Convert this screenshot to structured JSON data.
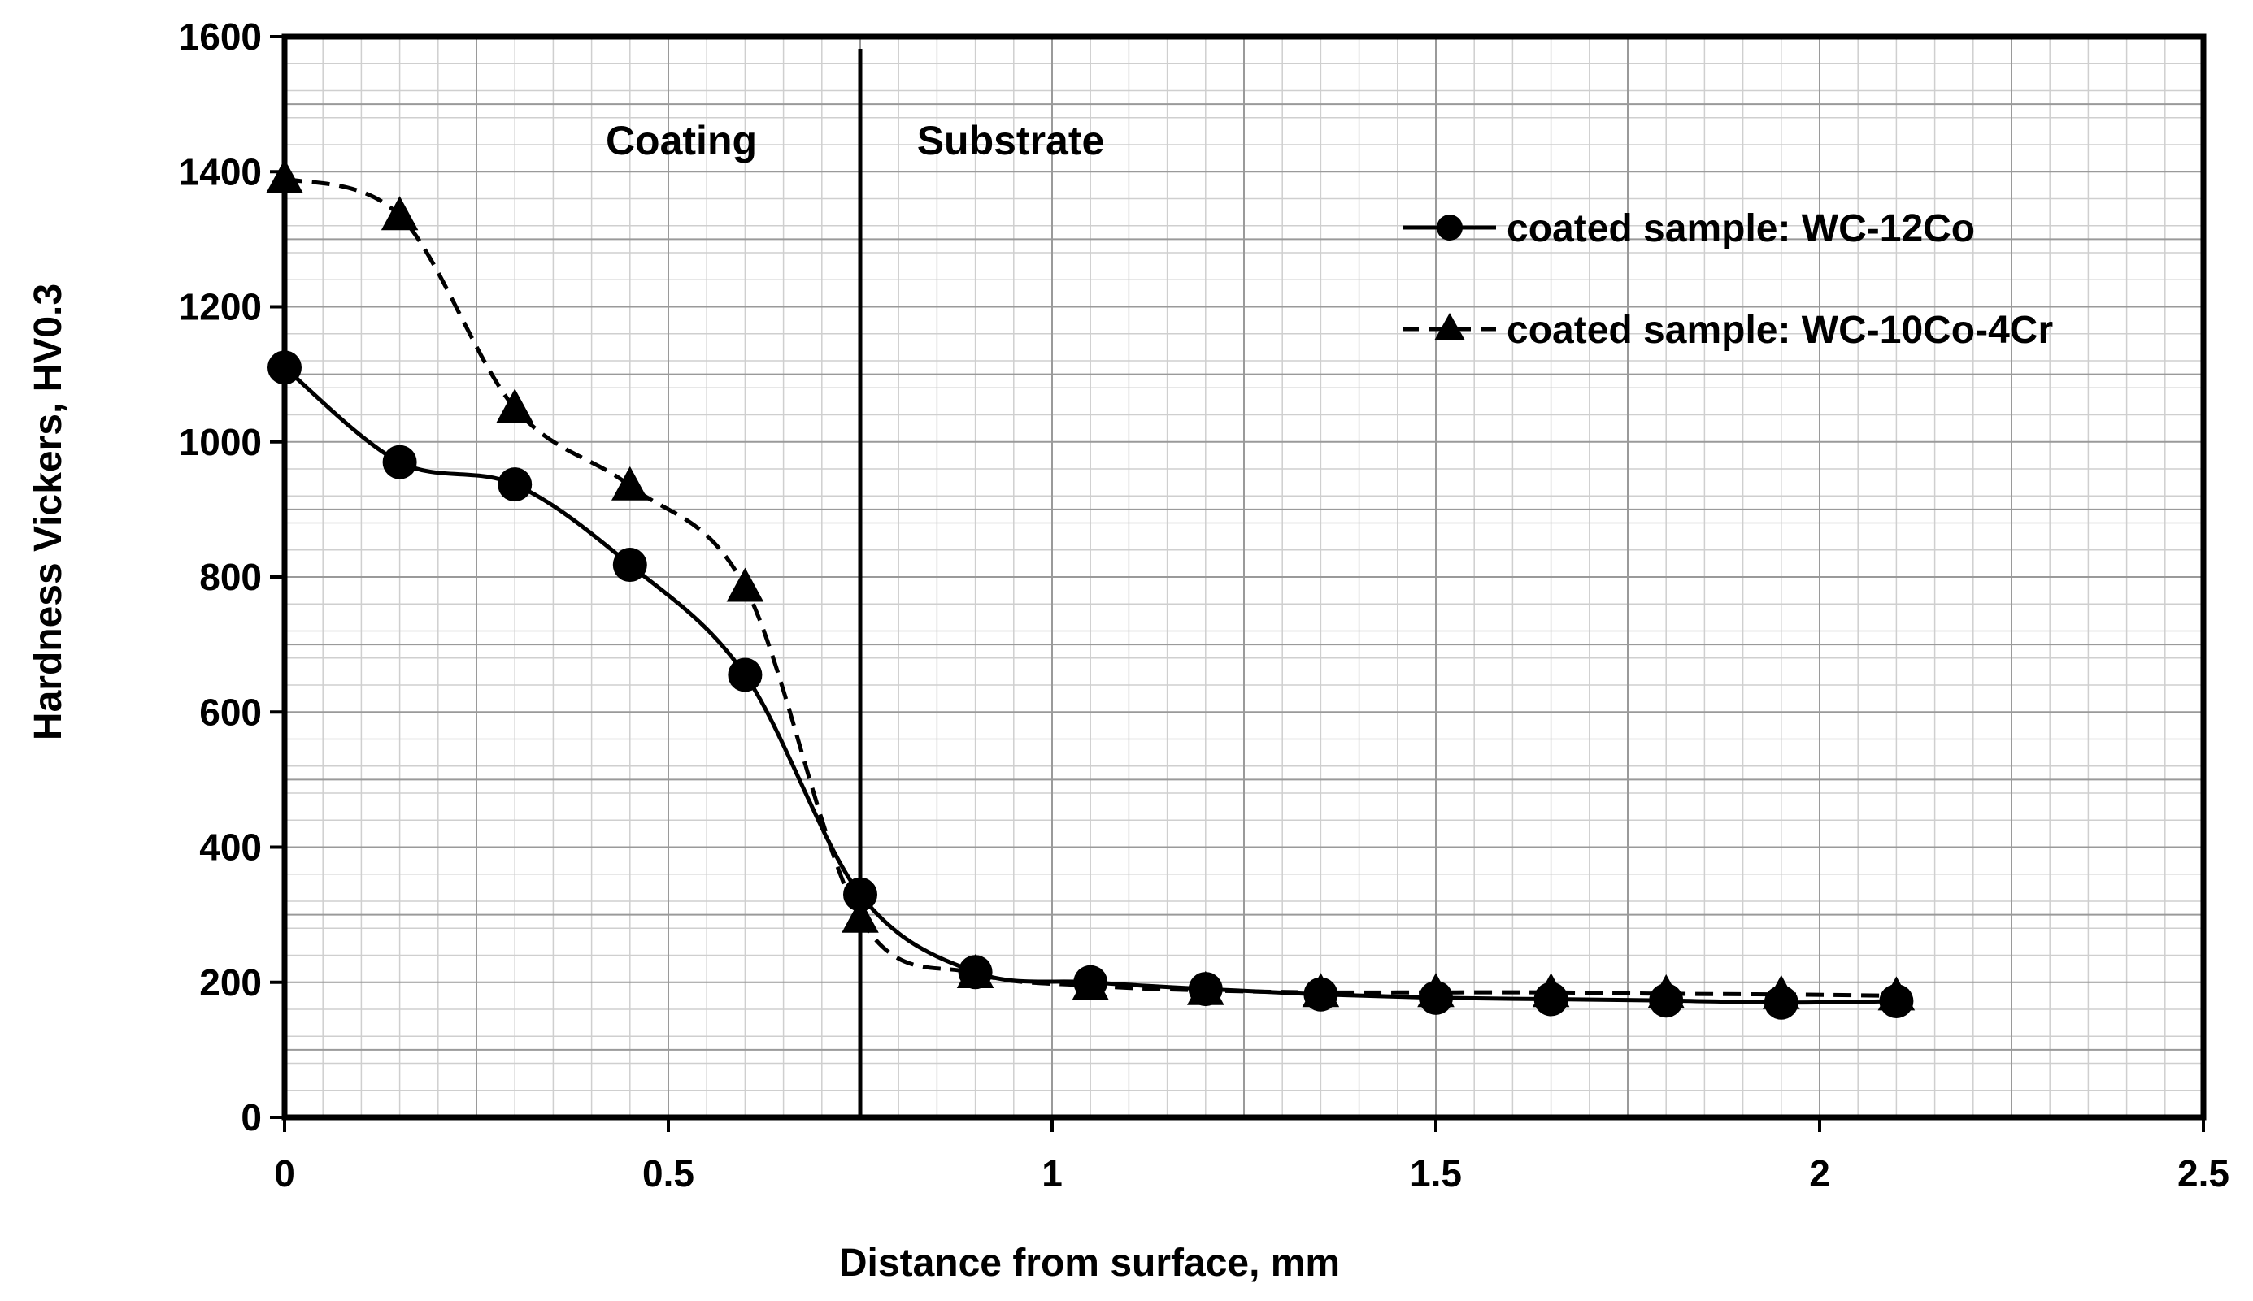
{
  "chart_data": {
    "type": "line",
    "title": "",
    "xlabel": "Distance from surface, mm",
    "ylabel": "Hardness Vickers, HV0.3",
    "xlim": [
      0,
      2.5
    ],
    "ylim": [
      0,
      1600
    ],
    "x_ticks": [
      "0",
      "0.5",
      "1",
      "1.5",
      "2",
      "2.5"
    ],
    "y_ticks": [
      "0",
      "200",
      "400",
      "600",
      "800",
      "1000",
      "1200",
      "1400",
      "1600"
    ],
    "x_tick_values": [
      0,
      0.5,
      1,
      1.5,
      2,
      2.5
    ],
    "y_tick_values": [
      0,
      200,
      400,
      600,
      800,
      1000,
      1200,
      1400,
      1600
    ],
    "grid": true,
    "legend_position": "top-right",
    "regions": {
      "boundary_x": 0.75,
      "left_label": "Coating",
      "right_label": "Substrate"
    },
    "series": [
      {
        "name": "coated sample: WC-12Co",
        "marker": "circle",
        "line": "solid",
        "x": [
          0,
          0.15,
          0.3,
          0.45,
          0.6,
          0.75,
          0.9,
          1.05,
          1.2,
          1.35,
          1.5,
          1.65,
          1.8,
          1.95,
          2.1
        ],
        "values": [
          1110,
          970,
          937,
          818,
          655,
          330,
          215,
          200,
          190,
          182,
          177,
          175,
          173,
          170,
          172
        ]
      },
      {
        "name": "coated sample: WC-10Co-4Cr",
        "marker": "triangle",
        "line": "dashed",
        "x": [
          0,
          0.15,
          0.3,
          0.45,
          0.6,
          0.75,
          0.9,
          1.05,
          1.2,
          1.35,
          1.5,
          1.65,
          1.8,
          1.95,
          2.1
        ],
        "values": [
          1390,
          1335,
          1050,
          935,
          785,
          295,
          213,
          195,
          188,
          185,
          185,
          185,
          183,
          182,
          180
        ]
      }
    ]
  }
}
